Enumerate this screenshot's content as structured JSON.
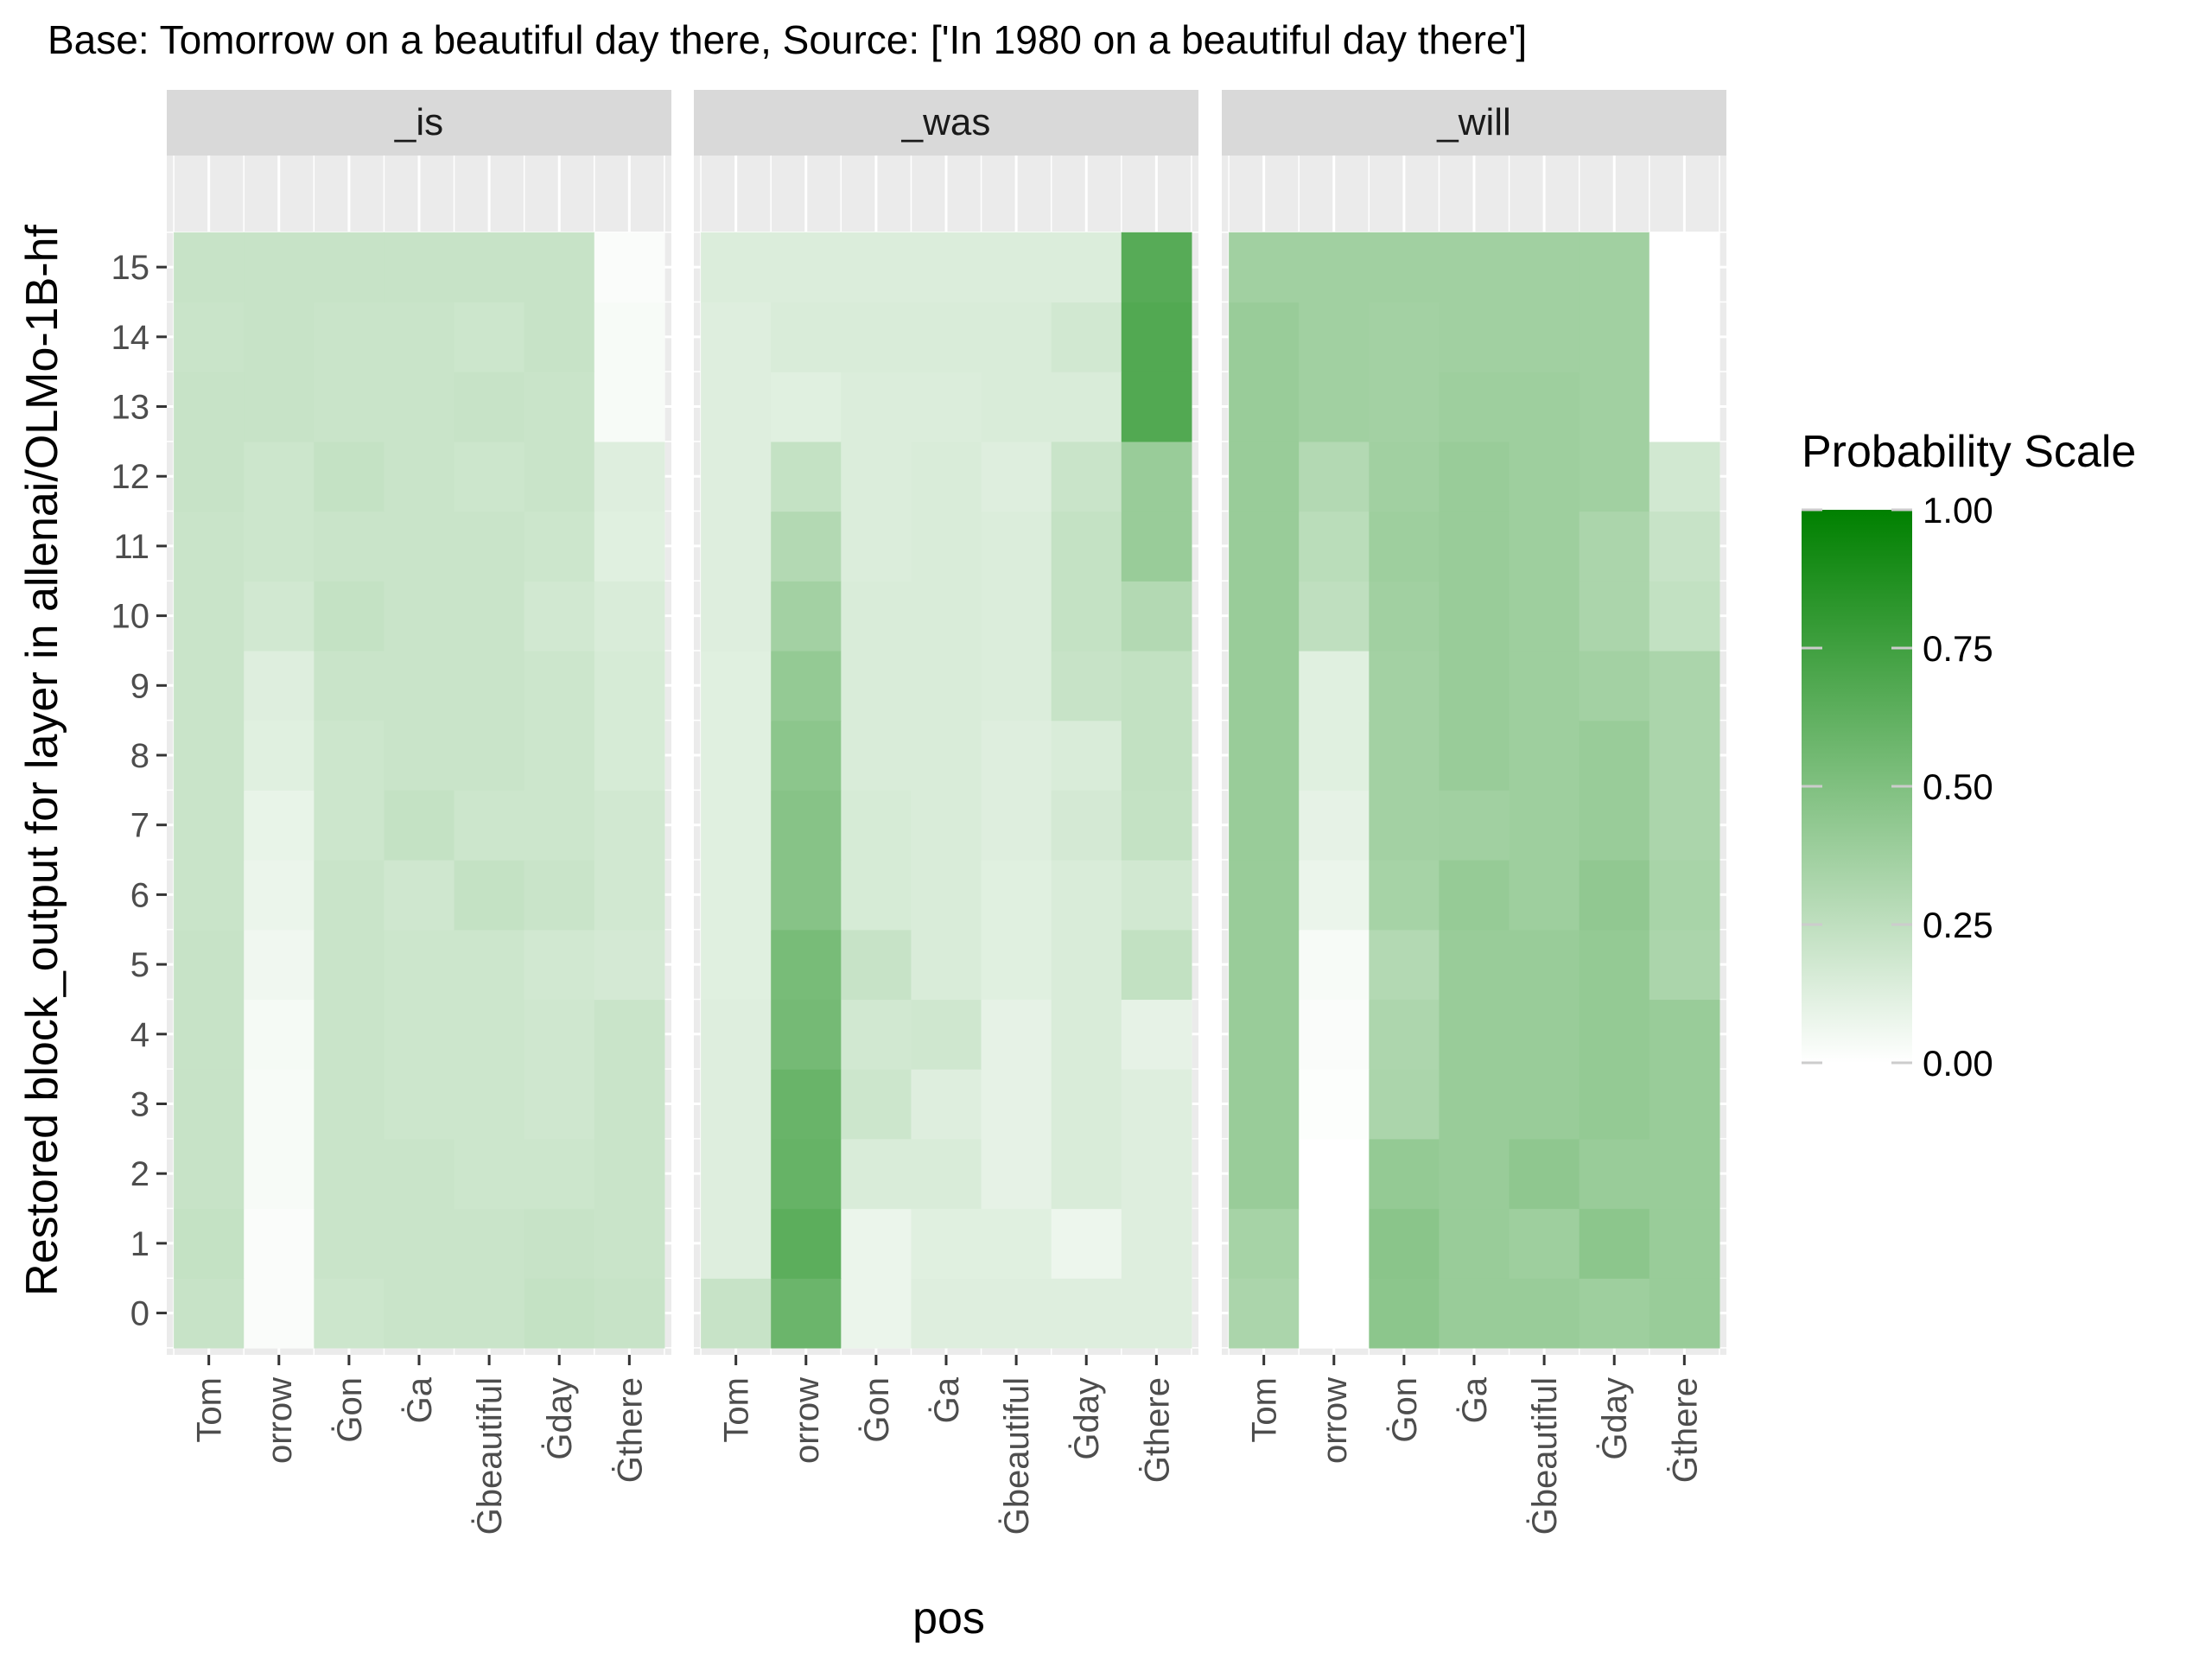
{
  "chart_data": {
    "type": "heatmap",
    "title": "Base: Tomorrow on a beautiful day there, Source: ['In 1980 on a beautiful day there']",
    "xlabel": "pos",
    "ylabel": "Restored block_output for layer in allenai/OLMo-1B-hf",
    "x_categories": [
      "Tom",
      "orrow",
      "Ġon",
      "Ġa",
      "Ġbeautiful",
      "Ġday",
      "Ġthere"
    ],
    "y_categories": [
      "0",
      "1",
      "2",
      "3",
      "4",
      "5",
      "6",
      "7",
      "8",
      "9",
      "10",
      "11",
      "12",
      "13",
      "14",
      "15"
    ],
    "legend": {
      "title": "Probability Scale",
      "breaks": [
        1.0,
        0.75,
        0.5,
        0.25,
        0.0
      ],
      "break_labels": [
        "1.00",
        "0.75",
        "0.50",
        "0.25",
        "0.00"
      ],
      "low_color": "#ffffff",
      "high_color": "#008000",
      "placement": "right"
    },
    "panel_strip_color": "#d9d9d9",
    "panel_background": "#ebebeb",
    "panels": [
      {
        "label": "_is",
        "values": [
          [
            0.22,
            0.02,
            0.2,
            0.21,
            0.21,
            0.23,
            0.22
          ],
          [
            0.23,
            0.02,
            0.21,
            0.21,
            0.21,
            0.22,
            0.21
          ],
          [
            0.22,
            0.03,
            0.21,
            0.21,
            0.2,
            0.2,
            0.21
          ],
          [
            0.22,
            0.03,
            0.21,
            0.2,
            0.2,
            0.19,
            0.21
          ],
          [
            0.22,
            0.04,
            0.21,
            0.2,
            0.2,
            0.19,
            0.21
          ],
          [
            0.22,
            0.06,
            0.21,
            0.2,
            0.2,
            0.18,
            0.17
          ],
          [
            0.21,
            0.08,
            0.21,
            0.19,
            0.23,
            0.21,
            0.18
          ],
          [
            0.21,
            0.09,
            0.2,
            0.23,
            0.2,
            0.2,
            0.18
          ],
          [
            0.21,
            0.12,
            0.2,
            0.21,
            0.21,
            0.2,
            0.16
          ],
          [
            0.21,
            0.13,
            0.21,
            0.21,
            0.21,
            0.2,
            0.16
          ],
          [
            0.21,
            0.18,
            0.23,
            0.21,
            0.21,
            0.18,
            0.15
          ],
          [
            0.21,
            0.2,
            0.21,
            0.21,
            0.21,
            0.2,
            0.12
          ],
          [
            0.22,
            0.2,
            0.23,
            0.21,
            0.2,
            0.21,
            0.13
          ],
          [
            0.22,
            0.22,
            0.21,
            0.21,
            0.22,
            0.21,
            0.03
          ],
          [
            0.21,
            0.22,
            0.21,
            0.21,
            0.2,
            0.22,
            0.03
          ],
          [
            0.22,
            0.22,
            0.22,
            0.22,
            0.22,
            0.22,
            0.02
          ]
        ]
      },
      {
        "label": "_was",
        "values": [
          [
            0.22,
            0.58,
            0.08,
            0.13,
            0.13,
            0.13,
            0.13
          ],
          [
            0.13,
            0.64,
            0.08,
            0.12,
            0.12,
            0.07,
            0.13
          ],
          [
            0.13,
            0.6,
            0.15,
            0.15,
            0.1,
            0.15,
            0.13
          ],
          [
            0.13,
            0.59,
            0.2,
            0.13,
            0.1,
            0.15,
            0.13
          ],
          [
            0.13,
            0.54,
            0.18,
            0.19,
            0.1,
            0.15,
            0.1
          ],
          [
            0.12,
            0.53,
            0.22,
            0.15,
            0.12,
            0.15,
            0.24
          ],
          [
            0.12,
            0.47,
            0.16,
            0.15,
            0.12,
            0.15,
            0.18
          ],
          [
            0.12,
            0.47,
            0.16,
            0.15,
            0.13,
            0.17,
            0.23
          ],
          [
            0.12,
            0.45,
            0.15,
            0.15,
            0.13,
            0.15,
            0.24
          ],
          [
            0.12,
            0.42,
            0.15,
            0.15,
            0.14,
            0.22,
            0.24
          ],
          [
            0.13,
            0.36,
            0.15,
            0.15,
            0.14,
            0.23,
            0.3
          ],
          [
            0.13,
            0.3,
            0.14,
            0.15,
            0.14,
            0.23,
            0.4
          ],
          [
            0.13,
            0.23,
            0.14,
            0.15,
            0.13,
            0.21,
            0.4
          ],
          [
            0.13,
            0.12,
            0.14,
            0.14,
            0.15,
            0.15,
            0.68
          ],
          [
            0.13,
            0.15,
            0.15,
            0.15,
            0.15,
            0.18,
            0.68
          ],
          [
            0.14,
            0.14,
            0.14,
            0.14,
            0.14,
            0.14,
            0.66
          ]
        ]
      },
      {
        "label": "_will",
        "values": [
          [
            0.33,
            0.0,
            0.45,
            0.4,
            0.4,
            0.38,
            0.4
          ],
          [
            0.35,
            0.0,
            0.46,
            0.4,
            0.38,
            0.45,
            0.4
          ],
          [
            0.4,
            0.0,
            0.42,
            0.4,
            0.44,
            0.4,
            0.4
          ],
          [
            0.4,
            0.01,
            0.33,
            0.4,
            0.4,
            0.42,
            0.4
          ],
          [
            0.4,
            0.02,
            0.32,
            0.4,
            0.4,
            0.42,
            0.4
          ],
          [
            0.4,
            0.03,
            0.3,
            0.4,
            0.4,
            0.42,
            0.33
          ],
          [
            0.4,
            0.08,
            0.35,
            0.41,
            0.38,
            0.43,
            0.34
          ],
          [
            0.4,
            0.1,
            0.36,
            0.37,
            0.38,
            0.4,
            0.33
          ],
          [
            0.4,
            0.12,
            0.36,
            0.4,
            0.38,
            0.4,
            0.33
          ],
          [
            0.4,
            0.12,
            0.36,
            0.4,
            0.38,
            0.36,
            0.33
          ],
          [
            0.4,
            0.25,
            0.37,
            0.4,
            0.38,
            0.33,
            0.24
          ],
          [
            0.4,
            0.27,
            0.38,
            0.4,
            0.38,
            0.33,
            0.22
          ],
          [
            0.4,
            0.3,
            0.37,
            0.4,
            0.38,
            0.37,
            0.18
          ],
          [
            0.4,
            0.37,
            0.36,
            0.38,
            0.38,
            0.37,
            0.0
          ],
          [
            0.4,
            0.37,
            0.36,
            0.37,
            0.37,
            0.37,
            0.0
          ],
          [
            0.37,
            0.37,
            0.37,
            0.37,
            0.37,
            0.37,
            0.0
          ]
        ]
      }
    ]
  }
}
